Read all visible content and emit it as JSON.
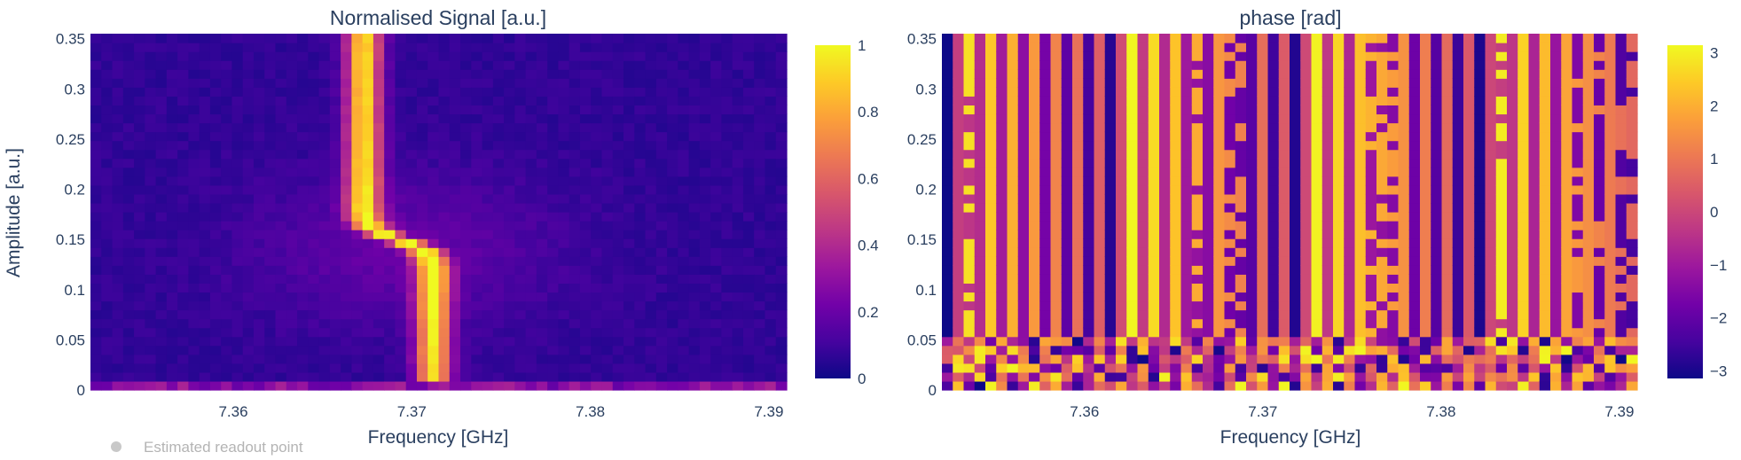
{
  "legend": {
    "label": "Estimated readout point",
    "marker_color": "#c8c8c8"
  },
  "chart_data": [
    {
      "type": "heatmap",
      "title": "Normalised Signal [a.u.]",
      "xlabel": "Frequency [GHz]",
      "ylabel": "Amplitude [a.u.]",
      "xlim": [
        7.352,
        7.391
      ],
      "ylim": [
        0,
        0.355
      ],
      "x_ticks": [
        7.36,
        7.37,
        7.38,
        7.39
      ],
      "x_tick_labels": [
        "7.36",
        "7.37",
        "7.38",
        "7.39"
      ],
      "y_ticks": [
        0,
        0.05,
        0.1,
        0.15,
        0.2,
        0.25,
        0.3,
        0.35
      ],
      "y_tick_labels": [
        "0",
        "0.05",
        "0.1",
        "0.15",
        "0.2",
        "0.25",
        "0.3",
        "0.35"
      ],
      "colorscale": "plasma",
      "colorbar": {
        "range": [
          0,
          1
        ],
        "ticks": [
          0,
          0.2,
          0.4,
          0.6,
          0.8,
          1
        ],
        "tick_labels": [
          "0",
          "0.2",
          "0.4",
          "0.6",
          "0.8",
          "1"
        ]
      },
      "n_freq": 64,
      "n_amp": 40,
      "resonance": {
        "description": "bright resonance feature; low-amplitude branch near 7.3712 GHz, high-amplitude branch near 7.3673 GHz, transition around amplitude 0.15",
        "high_power_freq": 7.3673,
        "low_power_freq": 7.3712,
        "transition_amp": 0.15
      }
    },
    {
      "type": "heatmap",
      "title": "phase [rad]",
      "xlabel": "Frequency [GHz]",
      "xlim": [
        7.352,
        7.391
      ],
      "ylim": [
        0,
        0.355
      ],
      "x_ticks": [
        7.36,
        7.37,
        7.38,
        7.39
      ],
      "x_tick_labels": [
        "7.36",
        "7.37",
        "7.38",
        "7.39"
      ],
      "y_ticks": [
        0,
        0.05,
        0.1,
        0.15,
        0.2,
        0.25,
        0.3,
        0.35
      ],
      "y_tick_labels": [
        "0",
        "0.05",
        "0.1",
        "0.15",
        "0.2",
        "0.25",
        "0.3",
        "0.35"
      ],
      "colorscale": "plasma",
      "colorbar": {
        "range": [
          -3.14,
          3.14
        ],
        "ticks": [
          -3,
          -2,
          -1,
          0,
          1,
          2,
          3
        ],
        "tick_labels": [
          "−3",
          "−2",
          "−1",
          "0",
          "1",
          "2",
          "3"
        ]
      },
      "n_freq": 64,
      "n_amp": 40,
      "phase_wrap_columns": 31
    }
  ]
}
